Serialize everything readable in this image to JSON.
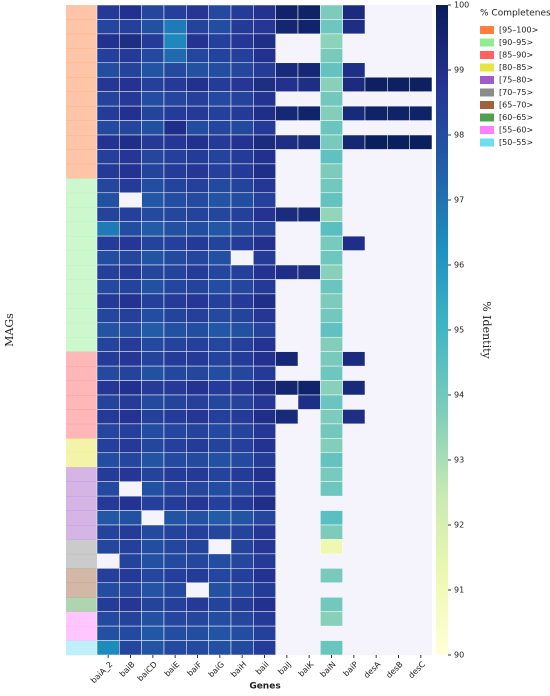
{
  "chart_data": {
    "type": "heatmap",
    "x_label": "Genes",
    "y_label": "MAGs",
    "colorbar_label": "% Identity",
    "columns": [
      "baiA_2",
      "baiB",
      "baiCD",
      "baiE",
      "baiF",
      "baiG",
      "baiH",
      "baiI",
      "baiJ",
      "baiK",
      "baiN",
      "baiP",
      "desA",
      "desB",
      "desC"
    ],
    "zlim": [
      90,
      100
    ],
    "zticks": [
      90,
      91,
      92,
      93,
      94,
      95,
      96,
      97,
      98,
      99,
      100
    ],
    "legend_title": "% Completeness",
    "groups": [
      {
        "name": "[95–100>",
        "color": "#ff7f3f"
      },
      {
        "name": "[90–95>",
        "color": "#90ee90"
      },
      {
        "name": "[85–90>",
        "color": "#ff6060"
      },
      {
        "name": "[80–85>",
        "color": "#e6e640"
      },
      {
        "name": "[75–80>",
        "color": "#a05cc8"
      },
      {
        "name": "[70–75>",
        "color": "#8c8c8c"
      },
      {
        "name": "[65–70>",
        "color": "#a0623c"
      },
      {
        "name": "[60–65>",
        "color": "#4fa04f"
      },
      {
        "name": "[55–60>",
        "color": "#ff80ff"
      },
      {
        "name": "[50–55>",
        "color": "#70dcf0"
      }
    ],
    "row_groups": [
      0,
      0,
      0,
      0,
      0,
      0,
      0,
      0,
      0,
      0,
      0,
      0,
      1,
      1,
      1,
      1,
      1,
      1,
      1,
      1,
      1,
      1,
      1,
      1,
      2,
      2,
      2,
      2,
      2,
      2,
      3,
      3,
      4,
      4,
      4,
      4,
      4,
      5,
      5,
      6,
      6,
      7,
      8,
      8,
      9
    ],
    "values": [
      [
        98.6,
        98.9,
        98.2,
        98.4,
        98.7,
        98.1,
        98.5,
        98.8,
        99.6,
        99.7,
        93.8,
        99.2,
        null,
        null,
        null
      ],
      [
        98.2,
        98.4,
        97.9,
        96.8,
        98.3,
        98.0,
        98.6,
        98.7,
        99.5,
        99.6,
        94.1,
        99.1,
        null,
        null,
        null
      ],
      [
        98.9,
        99.1,
        98.5,
        96.5,
        98.8,
        98.4,
        98.7,
        99.0,
        null,
        null,
        93.5,
        null,
        null,
        null,
        null
      ],
      [
        98.4,
        98.6,
        98.1,
        97.2,
        98.2,
        98.3,
        98.4,
        98.9,
        null,
        null,
        93.9,
        null,
        null,
        null,
        null
      ],
      [
        98.0,
        98.3,
        97.8,
        98.1,
        97.9,
        98.0,
        98.2,
        98.5,
        99.3,
        99.4,
        94.3,
        99.0,
        null,
        null,
        null
      ],
      [
        98.7,
        98.8,
        98.4,
        98.6,
        98.9,
        98.5,
        98.7,
        99.1,
        98.9,
        99.1,
        93.6,
        99.2,
        99.8,
        99.8,
        99.8
      ],
      [
        98.3,
        98.6,
        98.0,
        98.2,
        98.4,
        98.1,
        98.3,
        98.8,
        null,
        null,
        94.0,
        null,
        null,
        null,
        null
      ],
      [
        98.5,
        98.9,
        98.3,
        98.5,
        98.6,
        98.4,
        98.6,
        99.0,
        99.4,
        99.6,
        93.7,
        99.3,
        99.7,
        99.7,
        99.7
      ],
      [
        98.1,
        98.2,
        97.9,
        99.0,
        98.0,
        98.2,
        98.1,
        98.6,
        null,
        null,
        94.2,
        null,
        null,
        null,
        null
      ],
      [
        98.8,
        99.0,
        98.6,
        98.7,
        98.9,
        98.6,
        98.8,
        99.2,
        99.1,
        99.3,
        93.9,
        99.4,
        99.9,
        99.9,
        99.9
      ],
      [
        98.4,
        98.7,
        98.2,
        98.4,
        98.5,
        98.3,
        98.5,
        98.9,
        null,
        null,
        94.4,
        null,
        null,
        null,
        null
      ],
      [
        98.6,
        98.8,
        98.3,
        98.5,
        98.7,
        98.4,
        98.6,
        99.0,
        null,
        null,
        93.8,
        null,
        null,
        null,
        null
      ],
      [
        98.2,
        98.5,
        98.0,
        98.3,
        98.4,
        98.1,
        98.3,
        98.7,
        null,
        null,
        94.0,
        null,
        null,
        null,
        null
      ],
      [
        97.9,
        null,
        97.7,
        98.0,
        98.1,
        97.8,
        98.0,
        98.4,
        null,
        null,
        94.3,
        null,
        null,
        null,
        null
      ],
      [
        98.3,
        98.4,
        98.1,
        98.2,
        98.3,
        98.2,
        98.4,
        98.8,
        99.2,
        99.3,
        93.4,
        null,
        null,
        null,
        null
      ],
      [
        96.8,
        98.0,
        97.6,
        97.9,
        98.0,
        97.7,
        98.1,
        98.3,
        null,
        null,
        94.5,
        null,
        null,
        null,
        null
      ],
      [
        98.5,
        98.7,
        98.3,
        98.4,
        98.6,
        98.3,
        98.5,
        98.9,
        null,
        null,
        93.9,
        99.0,
        null,
        null,
        null
      ],
      [
        98.0,
        98.2,
        97.8,
        98.1,
        98.2,
        97.9,
        null,
        98.5,
        null,
        null,
        94.1,
        null,
        null,
        null,
        null
      ],
      [
        98.4,
        98.6,
        98.2,
        98.3,
        98.5,
        98.2,
        98.4,
        98.8,
        99.0,
        99.1,
        93.6,
        null,
        null,
        null,
        null
      ],
      [
        98.1,
        98.3,
        97.9,
        98.2,
        98.3,
        98.0,
        98.2,
        98.6,
        null,
        null,
        94.2,
        null,
        null,
        null,
        null
      ],
      [
        98.6,
        98.8,
        98.4,
        98.5,
        98.7,
        98.4,
        98.6,
        99.0,
        null,
        null,
        93.8,
        null,
        null,
        null,
        null
      ],
      [
        98.2,
        98.4,
        98.0,
        98.3,
        98.4,
        98.1,
        98.3,
        98.7,
        null,
        null,
        94.0,
        null,
        null,
        null,
        null
      ],
      [
        97.8,
        98.0,
        97.6,
        97.9,
        98.0,
        97.7,
        97.9,
        98.3,
        null,
        null,
        94.4,
        null,
        null,
        null,
        null
      ],
      [
        98.3,
        98.5,
        98.1,
        98.3,
        98.4,
        98.2,
        98.4,
        98.8,
        null,
        null,
        93.7,
        null,
        null,
        null,
        null
      ],
      [
        98.5,
        98.7,
        98.3,
        98.5,
        98.6,
        98.3,
        98.5,
        98.9,
        99.4,
        null,
        93.9,
        99.2,
        null,
        null,
        null
      ],
      [
        98.1,
        98.3,
        97.9,
        98.2,
        98.2,
        98.0,
        98.2,
        98.6,
        null,
        null,
        94.1,
        null,
        null,
        null,
        null
      ],
      [
        98.7,
        98.9,
        98.5,
        98.6,
        98.8,
        98.5,
        98.7,
        99.1,
        99.5,
        99.6,
        93.6,
        99.3,
        null,
        null,
        null
      ],
      [
        98.3,
        98.5,
        98.1,
        98.3,
        98.4,
        98.2,
        98.3,
        98.7,
        null,
        99.0,
        94.2,
        null,
        null,
        null,
        null
      ],
      [
        98.6,
        98.8,
        98.4,
        98.5,
        98.7,
        98.4,
        98.6,
        99.0,
        99.3,
        null,
        93.8,
        99.1,
        null,
        null,
        null
      ],
      [
        98.2,
        98.4,
        98.0,
        98.2,
        98.3,
        98.1,
        98.3,
        98.7,
        null,
        null,
        94.0,
        null,
        null,
        null,
        null
      ],
      [
        98.4,
        98.6,
        98.2,
        98.4,
        98.5,
        98.3,
        98.4,
        98.8,
        null,
        null,
        93.7,
        null,
        null,
        null,
        null
      ],
      [
        98.0,
        98.2,
        97.8,
        98.1,
        98.1,
        97.9,
        98.1,
        98.5,
        null,
        null,
        94.3,
        null,
        null,
        null,
        null
      ],
      [
        98.5,
        98.7,
        98.3,
        98.5,
        98.6,
        98.3,
        98.5,
        98.9,
        null,
        null,
        93.9,
        null,
        null,
        null,
        null
      ],
      [
        98.1,
        null,
        97.9,
        98.2,
        98.2,
        98.0,
        98.2,
        98.6,
        null,
        null,
        94.1,
        null,
        null,
        null,
        null
      ],
      [
        98.6,
        98.8,
        98.4,
        98.5,
        98.7,
        98.4,
        98.6,
        99.0,
        null,
        null,
        null,
        null,
        null,
        null,
        null
      ],
      [
        97.7,
        97.9,
        null,
        97.8,
        97.9,
        97.6,
        97.8,
        98.2,
        null,
        null,
        94.5,
        null,
        null,
        null,
        null
      ],
      [
        98.3,
        98.5,
        98.1,
        98.3,
        98.4,
        98.2,
        98.3,
        98.7,
        null,
        null,
        93.8,
        null,
        null,
        null,
        null
      ],
      [
        98.2,
        98.4,
        98.0,
        98.2,
        98.3,
        null,
        98.3,
        98.7,
        null,
        null,
        91.2,
        null,
        null,
        null,
        null
      ],
      [
        null,
        98.3,
        97.9,
        98.1,
        98.2,
        98.0,
        98.2,
        98.6,
        null,
        null,
        null,
        null,
        null,
        null,
        null
      ],
      [
        98.4,
        98.6,
        98.2,
        98.4,
        98.5,
        98.2,
        98.4,
        98.8,
        null,
        null,
        93.9,
        null,
        null,
        null,
        null
      ],
      [
        98.0,
        98.2,
        97.8,
        98.1,
        null,
        97.9,
        98.1,
        98.5,
        null,
        null,
        null,
        null,
        null,
        null,
        null
      ],
      [
        98.5,
        98.7,
        98.3,
        98.4,
        98.6,
        98.3,
        98.5,
        98.9,
        null,
        null,
        94.0,
        null,
        null,
        null,
        null
      ],
      [
        98.1,
        98.3,
        97.9,
        98.2,
        98.2,
        98.0,
        98.2,
        98.6,
        null,
        null,
        93.6,
        null,
        null,
        null,
        null
      ],
      [
        97.9,
        98.1,
        97.7,
        98.0,
        98.0,
        97.8,
        98.0,
        98.4,
        null,
        null,
        null,
        null,
        null,
        null,
        null
      ],
      [
        96.4,
        98.2,
        97.8,
        98.1,
        98.1,
        97.9,
        98.1,
        98.5,
        null,
        null,
        94.2,
        null,
        null,
        null,
        null
      ]
    ]
  }
}
